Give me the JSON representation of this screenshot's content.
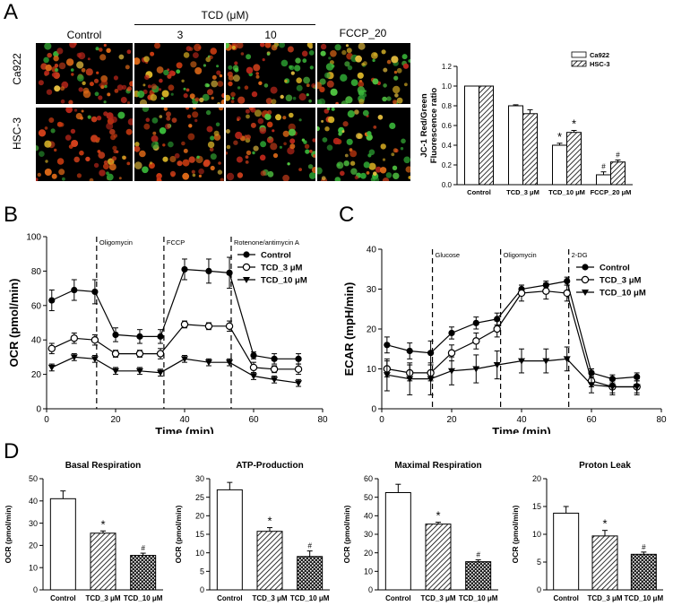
{
  "panels": {
    "A": "A",
    "B": "B",
    "C": "C",
    "D": "D"
  },
  "micrographs": {
    "treatment_header": "TCD (μM)",
    "columns": [
      "Control",
      "3",
      "10",
      "FCCP_20"
    ],
    "rows": [
      "Ca922",
      "HSC-3"
    ]
  },
  "chart_data": [
    {
      "id": "jc1",
      "type": "bar",
      "categories": [
        "Control",
        "TCD_3 μM",
        "TCD_10 μM",
        "FCCP_20 μM"
      ],
      "series": [
        {
          "name": "Ca922",
          "values": [
            1.0,
            0.8,
            0.4,
            0.1
          ],
          "errors": [
            0.0,
            0.01,
            0.02,
            0.03
          ],
          "marks": [
            "",
            "",
            "*",
            "#"
          ]
        },
        {
          "name": "HSC-3",
          "values": [
            1.0,
            0.72,
            0.53,
            0.23
          ],
          "errors": [
            0.0,
            0.04,
            0.02,
            0.02
          ],
          "marks": [
            "",
            "",
            "*",
            "#"
          ]
        }
      ],
      "ylabel": [
        "JC-1 Red/Green",
        "Fluorescence ratio"
      ],
      "ylim": [
        0,
        1.2
      ],
      "yticks": [
        "0.0",
        "0.2",
        "0.4",
        "0.6",
        "0.8",
        "1.0",
        "1.2"
      ],
      "legend": "top-right"
    },
    {
      "id": "ocr",
      "type": "line",
      "xlabel": "Time (min)",
      "ylabel": "OCR (pmol/min)",
      "xlim": [
        0,
        80
      ],
      "ylim": [
        0,
        100
      ],
      "xticks": [
        "0",
        "20",
        "40",
        "60",
        "80"
      ],
      "yticks": [
        "0",
        "20",
        "40",
        "60",
        "80",
        "100"
      ],
      "x": [
        1.5,
        8,
        14,
        20,
        27,
        33,
        40,
        47,
        53,
        60,
        66,
        73
      ],
      "series": [
        {
          "name": "Control",
          "marker": "filled-circle",
          "values": [
            63,
            69,
            68,
            43,
            42,
            42,
            81,
            80,
            79,
            31,
            29,
            29
          ],
          "errors": [
            6,
            6,
            7,
            4,
            4,
            4,
            6,
            7,
            9,
            2,
            3,
            3
          ]
        },
        {
          "name": "TCD_3 μM",
          "marker": "open-circle",
          "values": [
            35,
            41,
            40,
            32,
            32,
            32,
            49,
            48,
            48,
            24,
            23,
            23
          ],
          "errors": [
            3,
            3,
            3,
            2,
            2,
            3,
            2,
            2,
            3,
            3,
            2,
            3
          ]
        },
        {
          "name": "TCD_10 μM",
          "marker": "filled-triangle",
          "values": [
            24,
            30,
            29,
            22,
            22,
            21,
            29,
            27,
            27,
            19,
            17,
            15
          ],
          "errors": [
            2,
            2,
            2,
            2,
            2,
            2,
            2,
            2,
            2,
            2,
            2,
            2
          ]
        }
      ],
      "injections": [
        {
          "label": "Oligomycin",
          "x": 14.5
        },
        {
          "label": "FCCP",
          "x": 34
        },
        {
          "label": "Rotenone/antimycin A",
          "x": 53.5
        }
      ],
      "legend": "top-right"
    },
    {
      "id": "ecar",
      "type": "line",
      "xlabel": "Time (min)",
      "ylabel": "ECAR (mpH/min)",
      "xlim": [
        0,
        80
      ],
      "ylim": [
        0,
        40
      ],
      "xticks": [
        "0",
        "20",
        "40",
        "60",
        "80"
      ],
      "yticks": [
        "0",
        "10",
        "20",
        "30",
        "40"
      ],
      "x": [
        1.5,
        8,
        14,
        20,
        27,
        33,
        40,
        47,
        53,
        60,
        66,
        73
      ],
      "series": [
        {
          "name": "Control",
          "marker": "filled-circle",
          "values": [
            16,
            14.5,
            14,
            19,
            21.5,
            22.5,
            30,
            31,
            32,
            9,
            7.5,
            8
          ],
          "errors": [
            2,
            2,
            3,
            1.5,
            1.5,
            1.5,
            1,
            1,
            1,
            1,
            1,
            1
          ]
        },
        {
          "name": "TCD_3 μM",
          "marker": "open-circle",
          "values": [
            10,
            9,
            9,
            14,
            17,
            20,
            29,
            29.5,
            29,
            7,
            5.5,
            5.5
          ],
          "errors": [
            2,
            2,
            2,
            2,
            2,
            2,
            2,
            2,
            2,
            1.5,
            1.5,
            1.5
          ]
        },
        {
          "name": "TCD_10 μM",
          "marker": "filled-triangle",
          "values": [
            8.5,
            7.5,
            7.5,
            9.5,
            10,
            11,
            12,
            12,
            12.5,
            6,
            5.5,
            5.5
          ],
          "errors": [
            4,
            4,
            4,
            3.5,
            3.5,
            3.5,
            3,
            3,
            3,
            2,
            2,
            2
          ]
        }
      ],
      "injections": [
        {
          "label": "Glucose",
          "x": 14.5
        },
        {
          "label": "Oligomycin",
          "x": 34
        },
        {
          "label": "2-DG",
          "x": 53.5
        }
      ],
      "legend": "top-right"
    },
    {
      "id": "basal",
      "type": "bar",
      "title": "Basal Respiration",
      "ylabel": "OCR (pmol/min)",
      "categories": [
        "Control",
        "TCD_3 μM",
        "TCD_10 μM"
      ],
      "values": [
        41,
        25.5,
        15.5
      ],
      "errors": [
        3.5,
        1,
        1
      ],
      "marks": [
        "",
        "*",
        "#"
      ],
      "ylim": [
        0,
        50
      ],
      "yticks": [
        "0",
        "10",
        "20",
        "30",
        "40",
        "50"
      ]
    },
    {
      "id": "atp",
      "type": "bar",
      "title": "ATP-Production",
      "ylabel": "OCR (pmol/min)",
      "categories": [
        "Control",
        "TCD_3 μM",
        "TCD_10 μM"
      ],
      "values": [
        27,
        15.8,
        9
      ],
      "errors": [
        2,
        1,
        1.5
      ],
      "marks": [
        "",
        "*",
        "#"
      ],
      "ylim": [
        0,
        30
      ],
      "yticks": [
        "0",
        "5",
        "10",
        "15",
        "20",
        "25",
        "30"
      ]
    },
    {
      "id": "maximal",
      "type": "bar",
      "title": "Maximal Respiration",
      "ylabel": "OCR (pmol/min)",
      "categories": [
        "Control",
        "TCD_3 μM",
        "TCD_10 μM"
      ],
      "values": [
        52.5,
        35.5,
        15.2
      ],
      "errors": [
        4.5,
        1,
        1
      ],
      "marks": [
        "",
        "*",
        "#"
      ],
      "ylim": [
        0,
        60
      ],
      "yticks": [
        "0",
        "10",
        "20",
        "30",
        "40",
        "50",
        "60"
      ]
    },
    {
      "id": "leak",
      "type": "bar",
      "title": "Proton Leak",
      "ylabel": "OCR (pmol/min)",
      "categories": [
        "Control",
        "TCD_3 μM",
        "TCD_10 μM"
      ],
      "values": [
        13.8,
        9.7,
        6.4
      ],
      "errors": [
        1.2,
        1,
        0.4
      ],
      "marks": [
        "",
        "*",
        "#"
      ],
      "ylim": [
        0,
        20
      ],
      "yticks": [
        "0",
        "5",
        "10",
        "15",
        "20"
      ]
    }
  ]
}
